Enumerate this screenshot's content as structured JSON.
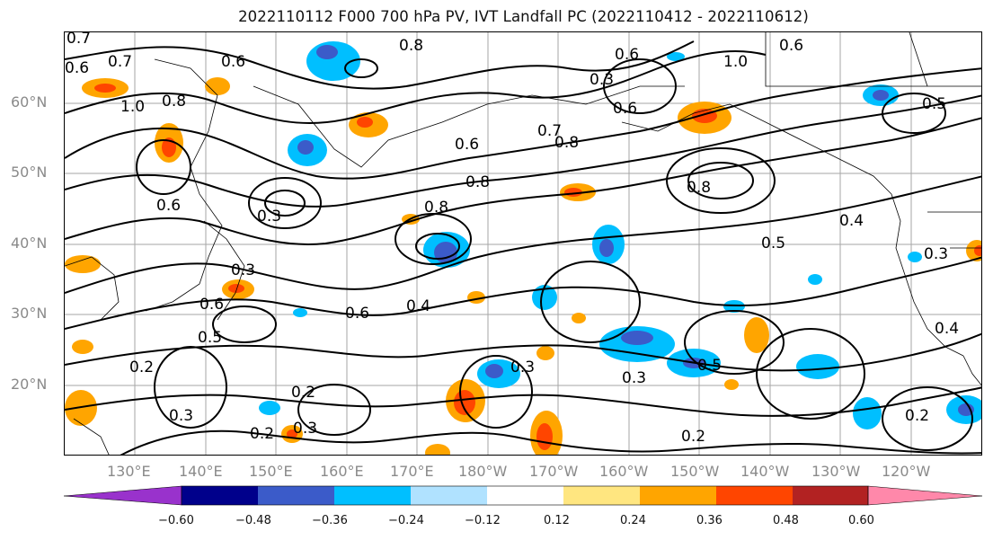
{
  "title": "2022110112 F000 700 hPa PV, IVT Landfall PC (2022110412 - 2022110612)",
  "map": {
    "lat_labels": [
      "60°N",
      "50°N",
      "40°N",
      "30°N",
      "20°N"
    ],
    "lon_labels": [
      "130°E",
      "140°E",
      "150°E",
      "160°E",
      "170°E",
      "180°W",
      "170°W",
      "160°W",
      "150°W",
      "140°W",
      "130°W",
      "120°W"
    ],
    "contour_labels": [
      "0.7",
      "0.6",
      "0.7",
      "1.0",
      "0.8",
      "0.6",
      "0.8",
      "0.6",
      "0.3",
      "0.7",
      "0.6",
      "0.8",
      "0.6",
      "0.8",
      "1.0",
      "0.6",
      "0.5",
      "0.8",
      "0.8",
      "0.6",
      "0.3",
      "0.6",
      "0.3",
      "0.6",
      "0.4",
      "0.5",
      "0.2",
      "0.2",
      "0.3",
      "0.2",
      "0.3",
      "0.3",
      "0.5",
      "0.2",
      "0.2",
      "0.3",
      "0.4",
      "0.3",
      "0.5",
      "0.4"
    ],
    "colors": {
      "gridline": "#9a9a9a",
      "contour": "#000000",
      "label_text": "#8a8a8a"
    }
  },
  "colorbar": {
    "ticks": [
      "−0.60",
      "−0.48",
      "−0.36",
      "−0.24",
      "−0.12",
      "0.12",
      "0.24",
      "0.36",
      "0.48",
      "0.60"
    ],
    "bins": [
      "#9932cc",
      "#00008b",
      "#3b5bc9",
      "#00bfff",
      "#b0e2ff",
      "#ffffff",
      "#ffe680",
      "#ffa500",
      "#ff4500",
      "#b22222",
      "#ff88aa"
    ]
  }
}
